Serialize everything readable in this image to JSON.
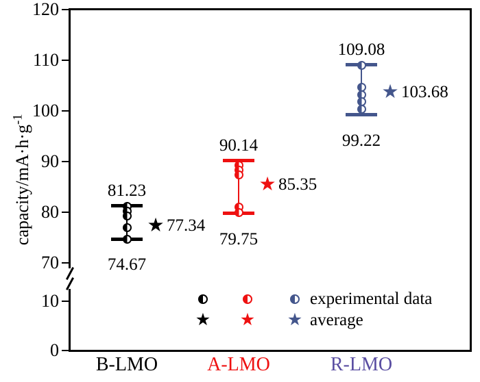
{
  "chart_data": {
    "type": "scatter",
    "title": "",
    "ylabel": "capacity/mA·h·g⁻¹",
    "ylabel_main": "capacity/mA·h·g",
    "ylabel_sup": "-1",
    "y_axis": {
      "upper_ticks": [
        70,
        80,
        90,
        100,
        110,
        120
      ],
      "lower_ticks": [
        0,
        10
      ],
      "upper_range": [
        70,
        120
      ],
      "lower_range": [
        0,
        10
      ],
      "axis_break": true,
      "grid": false
    },
    "categories": [
      "B-LMO",
      "A-LMO",
      "R-LMO"
    ],
    "groups": [
      {
        "name": "B-LMO",
        "color": "#000000",
        "label_color": "#000000",
        "max": 81.23,
        "min": 74.67,
        "average": 77.34,
        "experimental": [
          81.1,
          80.2,
          79.3,
          76.9,
          74.7
        ]
      },
      {
        "name": "A-LMO",
        "color": "#ee1111",
        "label_color": "#ee1111",
        "max": 90.14,
        "min": 79.75,
        "average": 85.35,
        "experimental": [
          89.2,
          88.3,
          87.4,
          81.0,
          79.9
        ]
      },
      {
        "name": "R-LMO",
        "color": "#44568c",
        "label_color": "#5a4ea2",
        "max": 109.08,
        "min": 99.22,
        "average": 103.68,
        "experimental": [
          109.0,
          104.6,
          103.2,
          101.8,
          100.4
        ]
      }
    ],
    "legend": [
      {
        "label": "experimental data",
        "marker": "half-filled-circle"
      },
      {
        "label": "average",
        "marker": "star"
      }
    ]
  }
}
